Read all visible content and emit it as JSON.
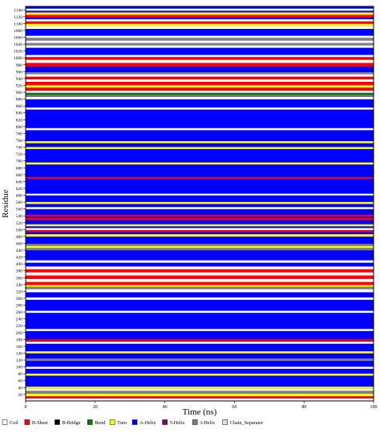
{
  "chart_data": {
    "type": "heatmap",
    "title": "",
    "xlabel": "Time (ns)",
    "ylabel": "Residue",
    "xlim": [
      0,
      100
    ],
    "ylim": [
      1,
      1150
    ],
    "xticks": [
      "0",
      "20",
      "40",
      "60",
      "80",
      "100"
    ],
    "yticks": [
      "20",
      "40",
      "60",
      "80",
      "100",
      "120",
      "140",
      "160",
      "180",
      "200",
      "220",
      "240",
      "260",
      "280",
      "300",
      "320",
      "340",
      "360",
      "380",
      "400",
      "420",
      "440",
      "460",
      "480",
      "500",
      "520",
      "540",
      "560",
      "580",
      "600",
      "620",
      "640",
      "660",
      "680",
      "700",
      "720",
      "740",
      "760",
      "780",
      "800",
      "820",
      "840",
      "860",
      "880",
      "900",
      "920",
      "940",
      "960",
      "980",
      "1000",
      "1020",
      "1040",
      "1060",
      "1080",
      "1100",
      "1120",
      "1140"
    ],
    "legend_position": "bottom",
    "categories": [
      {
        "name": "Coil",
        "color": "#ffffff"
      },
      {
        "name": "B-Sheet",
        "color": "#ff0000"
      },
      {
        "name": "B-Bridge",
        "color": "#000000"
      },
      {
        "name": "Bend",
        "color": "#008000"
      },
      {
        "name": "Turn",
        "color": "#ffff00"
      },
      {
        "name": "A-Helix",
        "color": "#0000ff"
      },
      {
        "name": "5-Helix",
        "color": "#800080"
      },
      {
        "name": "3-Helix",
        "color": "#808080"
      },
      {
        "name": "Chain_Separator",
        "color": "#e0e0e0"
      }
    ],
    "background_state": "A-Helix",
    "residue_bands": [
      {
        "from": 1,
        "to": 8,
        "state": "Coil"
      },
      {
        "from": 9,
        "to": 14,
        "state": "B-Sheet"
      },
      {
        "from": 15,
        "to": 22,
        "state": "Turn"
      },
      {
        "from": 23,
        "to": 30,
        "state": "3-Helix"
      },
      {
        "from": 31,
        "to": 36,
        "state": "Coil"
      },
      {
        "from": 37,
        "to": 42,
        "state": "Turn"
      },
      {
        "from": 75,
        "to": 80,
        "state": "Turn"
      },
      {
        "from": 95,
        "to": 100,
        "state": "Coil"
      },
      {
        "from": 118,
        "to": 124,
        "state": "3-Helix"
      },
      {
        "from": 140,
        "to": 145,
        "state": "Turn"
      },
      {
        "from": 168,
        "to": 173,
        "state": "Coil"
      },
      {
        "from": 175,
        "to": 180,
        "state": "B-Sheet"
      },
      {
        "from": 205,
        "to": 210,
        "state": "Coil"
      },
      {
        "from": 258,
        "to": 263,
        "state": "Coil"
      },
      {
        "from": 296,
        "to": 302,
        "state": "Coil"
      },
      {
        "from": 318,
        "to": 326,
        "state": "Coil"
      },
      {
        "from": 327,
        "to": 333,
        "state": "3-Helix"
      },
      {
        "from": 334,
        "to": 338,
        "state": "Turn"
      },
      {
        "from": 339,
        "to": 347,
        "state": "B-Sheet"
      },
      {
        "from": 348,
        "to": 356,
        "state": "Coil"
      },
      {
        "from": 357,
        "to": 366,
        "state": "B-Sheet"
      },
      {
        "from": 367,
        "to": 375,
        "state": "Coil"
      },
      {
        "from": 376,
        "to": 384,
        "state": "B-Sheet"
      },
      {
        "from": 385,
        "to": 392,
        "state": "Coil"
      },
      {
        "from": 404,
        "to": 410,
        "state": "Coil"
      },
      {
        "from": 440,
        "to": 446,
        "state": "3-Helix"
      },
      {
        "from": 447,
        "to": 452,
        "state": "Turn"
      },
      {
        "from": 453,
        "to": 458,
        "state": "3-Helix"
      },
      {
        "from": 480,
        "to": 486,
        "state": "Turn"
      },
      {
        "from": 493,
        "to": 498,
        "state": "B-Sheet"
      },
      {
        "from": 499,
        "to": 504,
        "state": "Coil"
      },
      {
        "from": 510,
        "to": 515,
        "state": "Turn"
      },
      {
        "from": 528,
        "to": 533,
        "state": "B-Sheet"
      },
      {
        "from": 538,
        "to": 543,
        "state": "B-Sheet"
      },
      {
        "from": 560,
        "to": 565,
        "state": "Coil"
      },
      {
        "from": 575,
        "to": 580,
        "state": "Turn"
      },
      {
        "from": 600,
        "to": 604,
        "state": "Coil"
      },
      {
        "from": 648,
        "to": 652,
        "state": "B-Sheet"
      },
      {
        "from": 690,
        "to": 695,
        "state": "Turn"
      },
      {
        "from": 735,
        "to": 740,
        "state": "Turn"
      },
      {
        "from": 752,
        "to": 757,
        "state": "Turn"
      },
      {
        "from": 790,
        "to": 795,
        "state": "Coil"
      },
      {
        "from": 850,
        "to": 855,
        "state": "Coil"
      },
      {
        "from": 880,
        "to": 886,
        "state": "Coil"
      },
      {
        "from": 887,
        "to": 892,
        "state": "3-Helix"
      },
      {
        "from": 893,
        "to": 898,
        "state": "Bend"
      },
      {
        "from": 899,
        "to": 904,
        "state": "Coil"
      },
      {
        "from": 905,
        "to": 913,
        "state": "B-Sheet"
      },
      {
        "from": 914,
        "to": 920,
        "state": "Turn"
      },
      {
        "from": 921,
        "to": 930,
        "state": "B-Sheet"
      },
      {
        "from": 931,
        "to": 937,
        "state": "Coil"
      },
      {
        "from": 938,
        "to": 945,
        "state": "B-Sheet"
      },
      {
        "from": 946,
        "to": 952,
        "state": "Coil"
      },
      {
        "from": 953,
        "to": 958,
        "state": "3-Helix"
      },
      {
        "from": 975,
        "to": 985,
        "state": "B-Sheet"
      },
      {
        "from": 986,
        "to": 994,
        "state": "Coil"
      },
      {
        "from": 995,
        "to": 1002,
        "state": "B-Sheet"
      },
      {
        "from": 1003,
        "to": 1008,
        "state": "Coil"
      },
      {
        "from": 1030,
        "to": 1036,
        "state": "Coil"
      },
      {
        "from": 1037,
        "to": 1043,
        "state": "3-Helix"
      },
      {
        "from": 1044,
        "to": 1050,
        "state": "Coil"
      },
      {
        "from": 1051,
        "to": 1058,
        "state": "3-Helix"
      },
      {
        "from": 1059,
        "to": 1064,
        "state": "Coil"
      },
      {
        "from": 1085,
        "to": 1092,
        "state": "Coil"
      },
      {
        "from": 1093,
        "to": 1099,
        "state": "Turn"
      },
      {
        "from": 1100,
        "to": 1106,
        "state": "B-Sheet"
      },
      {
        "from": 1107,
        "to": 1112,
        "state": "Coil"
      },
      {
        "from": 1118,
        "to": 1125,
        "state": "B-Sheet"
      },
      {
        "from": 1126,
        "to": 1132,
        "state": "Turn"
      },
      {
        "from": 1138,
        "to": 1143,
        "state": "Coil"
      }
    ]
  }
}
